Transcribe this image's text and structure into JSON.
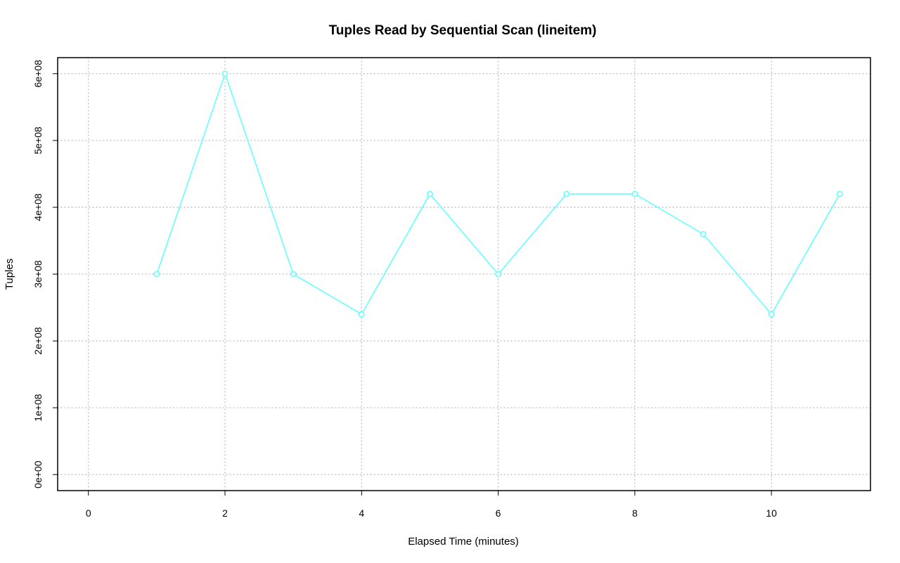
{
  "chart_data": {
    "type": "line",
    "title": "Tuples Read by Sequential Scan (lineitem)",
    "xlabel": "Elapsed Time (minutes)",
    "ylabel": "Tuples",
    "xlim": [
      -0.45,
      11.45
    ],
    "ylim": [
      -24000000,
      624000000
    ],
    "x_ticks": [
      0,
      2,
      4,
      6,
      8,
      10
    ],
    "x_tick_labels": [
      "0",
      "2",
      "4",
      "6",
      "8",
      "10"
    ],
    "y_ticks": [
      0,
      100000000,
      200000000,
      300000000,
      400000000,
      500000000,
      600000000
    ],
    "y_tick_labels": [
      "0e+00",
      "1e+08",
      "2e+08",
      "3e+08",
      "4e+08",
      "5e+08",
      "6e+08"
    ],
    "grid": true,
    "series": [
      {
        "color": "#66ffff",
        "marker": "open-circle",
        "x": [
          1,
          2,
          3,
          4,
          5,
          6,
          7,
          8,
          9,
          10,
          11
        ],
        "values": [
          300000000,
          600000000,
          300000000,
          240000000,
          420000000,
          300000000,
          420000000,
          420000000,
          360000000,
          240000000,
          420000000
        ]
      }
    ]
  }
}
